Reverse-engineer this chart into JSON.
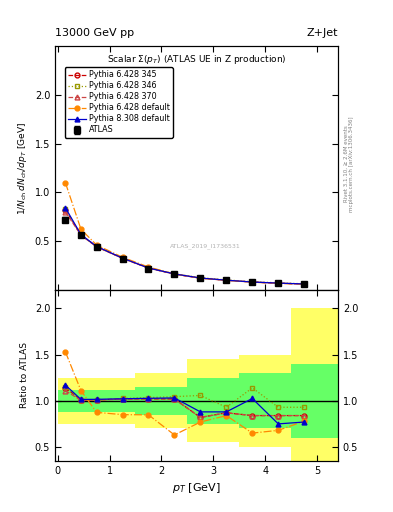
{
  "title_top": "13000 GeV pp",
  "title_right": "Z+Jet",
  "plot_title": "Scalar Σ(p_T) (ATLAS UE in Z production)",
  "ylabel_main": "1/N_{ch} dN_{ch}/dp_T [GeV]",
  "ylabel_ratio": "Ratio to ATLAS",
  "xlabel": "p_T [GeV]",
  "watermark": "ATLAS_2019_I1736531",
  "right_label": "Rivet 3.1.10, ≥ 2.6M events",
  "right_label2": "mcplots.cern.ch [arXiv:1306.3436]",
  "atlas_x": [
    0.15,
    0.45,
    0.75,
    1.25,
    1.75,
    2.25,
    2.75,
    3.25,
    3.75,
    4.25,
    4.75
  ],
  "atlas_y": [
    0.72,
    0.56,
    0.44,
    0.32,
    0.22,
    0.16,
    0.12,
    0.1,
    0.08,
    0.07,
    0.06
  ],
  "atlas_yerr": [
    0.025,
    0.015,
    0.01,
    0.008,
    0.005,
    0.004,
    0.003,
    0.002,
    0.002,
    0.001,
    0.001
  ],
  "py6_345_x": [
    0.15,
    0.45,
    0.75,
    1.25,
    1.75,
    2.25,
    2.75,
    3.25,
    3.75,
    4.25,
    4.75
  ],
  "py6_345_y": [
    0.82,
    0.565,
    0.445,
    0.325,
    0.225,
    0.163,
    0.122,
    0.1,
    0.082,
    0.07,
    0.062
  ],
  "py6_346_x": [
    0.15,
    0.45,
    0.75,
    1.25,
    1.75,
    2.25,
    2.75,
    3.25,
    3.75,
    4.25,
    4.75
  ],
  "py6_346_y": [
    0.83,
    0.563,
    0.443,
    0.328,
    0.228,
    0.167,
    0.127,
    0.104,
    0.085,
    0.074,
    0.064
  ],
  "py6_370_x": [
    0.15,
    0.45,
    0.75,
    1.25,
    1.75,
    2.25,
    2.75,
    3.25,
    3.75,
    4.25,
    4.75
  ],
  "py6_370_y": [
    0.8,
    0.562,
    0.443,
    0.325,
    0.225,
    0.163,
    0.122,
    0.1,
    0.082,
    0.07,
    0.062
  ],
  "py6_def_x": [
    0.15,
    0.45,
    0.75,
    1.25,
    1.75,
    2.25,
    2.75,
    3.25,
    3.75,
    4.25,
    4.75
  ],
  "py6_def_y": [
    1.1,
    0.622,
    0.462,
    0.336,
    0.236,
    0.165,
    0.12,
    0.1,
    0.08,
    0.068,
    0.058
  ],
  "py8_def_x": [
    0.15,
    0.45,
    0.75,
    1.25,
    1.75,
    2.25,
    2.75,
    3.25,
    3.75,
    4.25,
    4.75
  ],
  "py8_def_y": [
    0.843,
    0.568,
    0.447,
    0.327,
    0.226,
    0.165,
    0.123,
    0.101,
    0.082,
    0.071,
    0.062
  ],
  "ratio_py6_345": [
    1.14,
    1.01,
    1.01,
    1.02,
    1.02,
    1.02,
    0.82,
    0.87,
    0.84,
    0.84,
    0.84
  ],
  "ratio_py6_346": [
    1.15,
    1.005,
    1.005,
    1.025,
    1.035,
    1.045,
    1.058,
    0.93,
    1.14,
    0.93,
    0.93
  ],
  "ratio_py6_370": [
    1.11,
    1.005,
    1.008,
    1.016,
    1.023,
    1.019,
    0.82,
    0.87,
    0.84,
    0.84,
    0.84
  ],
  "ratio_py6_def": [
    1.53,
    1.11,
    0.875,
    0.85,
    0.848,
    0.63,
    0.77,
    0.84,
    0.65,
    0.68,
    0.78
  ],
  "ratio_py8_def": [
    1.17,
    1.015,
    1.016,
    1.022,
    1.027,
    1.031,
    0.88,
    0.88,
    1.025,
    0.75,
    0.77
  ],
  "color_py6_345": "#cc0000",
  "color_py6_346": "#999900",
  "color_py6_370": "#cc4444",
  "color_py6_def": "#ff8800",
  "color_py8_def": "#0000cc",
  "band_x_edges": [
    0.0,
    0.5,
    1.0,
    1.5,
    2.5,
    3.5,
    4.5,
    5.5
  ],
  "yellow_lo": [
    0.75,
    0.75,
    0.75,
    0.7,
    0.55,
    0.5,
    0.35,
    0.35
  ],
  "yellow_hi": [
    1.25,
    1.25,
    1.25,
    1.3,
    1.45,
    1.5,
    2.0,
    2.0
  ],
  "green_lo": [
    0.88,
    0.88,
    0.88,
    0.85,
    0.75,
    0.7,
    0.6,
    0.6
  ],
  "green_hi": [
    1.12,
    1.12,
    1.12,
    1.15,
    1.25,
    1.3,
    1.4,
    1.4
  ],
  "main_ylim": [
    0.0,
    2.5
  ],
  "main_yticks": [
    0.5,
    1.0,
    1.5,
    2.0
  ],
  "ratio_ylim": [
    0.35,
    2.2
  ],
  "ratio_yticks": [
    0.5,
    1.0,
    1.5,
    2.0
  ],
  "xlim": [
    -0.05,
    5.4
  ]
}
